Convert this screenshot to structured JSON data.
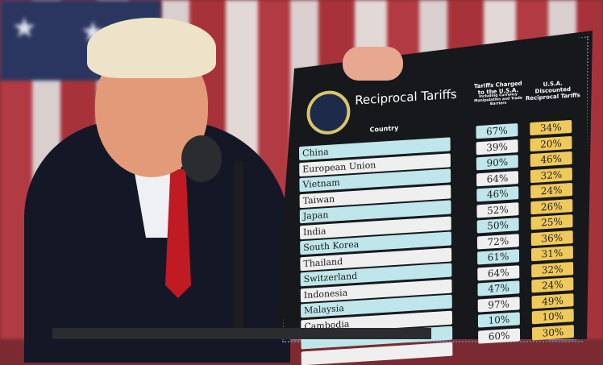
{
  "board": {
    "title": "Reciprocal Tariffs",
    "col_country": "Country",
    "col_charged": "Tariffs Charged to the U.S.A.",
    "col_charged_sub": "Including Currency Manipulation and Trade Barriers",
    "col_discounted": "U.S.A. Discounted Reciprocal Tariffs",
    "rows": [
      {
        "country": "China",
        "charged": "67%",
        "discounted": "34%"
      },
      {
        "country": "European Union",
        "charged": "39%",
        "discounted": "20%"
      },
      {
        "country": "Vietnam",
        "charged": "90%",
        "discounted": "46%"
      },
      {
        "country": "Taiwan",
        "charged": "64%",
        "discounted": "32%"
      },
      {
        "country": "Japan",
        "charged": "46%",
        "discounted": "24%"
      },
      {
        "country": "India",
        "charged": "52%",
        "discounted": "26%"
      },
      {
        "country": "South Korea",
        "charged": "50%",
        "discounted": "25%"
      },
      {
        "country": "Thailand",
        "charged": "72%",
        "discounted": "36%"
      },
      {
        "country": "Switzerland",
        "charged": "61%",
        "discounted": "31%"
      },
      {
        "country": "Indonesia",
        "charged": "64%",
        "discounted": "32%"
      },
      {
        "country": "Malaysia",
        "charged": "47%",
        "discounted": "24%"
      },
      {
        "country": "Cambodia",
        "charged": "97%",
        "discounted": "49%"
      },
      {
        "country": "",
        "charged": "10%",
        "discounted": "10%"
      },
      {
        "country": "",
        "charged": "60%",
        "discounted": "30%"
      }
    ]
  },
  "colors": {
    "cyan": "#bfe6ea",
    "white": "#efefef",
    "gold": "#efc95a",
    "board": "#16181c"
  }
}
